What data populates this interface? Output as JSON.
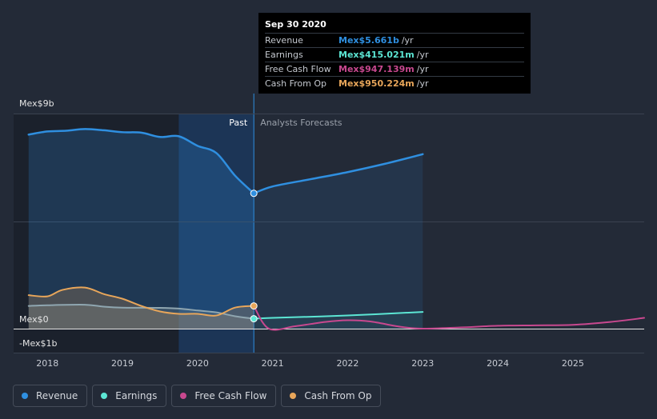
{
  "chart_data": {
    "type": "line",
    "title": "",
    "ylabel": "",
    "ylim": [
      -1,
      9
    ],
    "y_ticks": [
      {
        "value": 9,
        "label": "Mex$9b"
      },
      {
        "value": 0,
        "label": "Mex$0"
      },
      {
        "value": -1,
        "label": "-Mex$1b"
      }
    ],
    "x_range": [
      2017.55,
      2025.95
    ],
    "x_ticks": [
      {
        "value": 2018,
        "label": "2018"
      },
      {
        "value": 2019,
        "label": "2019"
      },
      {
        "value": 2020,
        "label": "2020"
      },
      {
        "value": 2021,
        "label": "2021"
      },
      {
        "value": 2022,
        "label": "2022"
      },
      {
        "value": 2023,
        "label": "2023"
      },
      {
        "value": 2024,
        "label": "2024"
      },
      {
        "value": 2025,
        "label": "2025"
      }
    ],
    "past_label": "Past",
    "forecast_label": "Analysts Forecasts",
    "past_end": 2020.75,
    "past_highlight_start": 2019.75,
    "series": [
      {
        "name": "Revenue",
        "color": "#2f8fe0",
        "points": [
          [
            2017.75,
            8.12
          ],
          [
            2018.0,
            8.25
          ],
          [
            2018.25,
            8.28
          ],
          [
            2018.5,
            8.35
          ],
          [
            2018.75,
            8.3
          ],
          [
            2019.0,
            8.22
          ],
          [
            2019.25,
            8.2
          ],
          [
            2019.5,
            8.02
          ],
          [
            2019.75,
            8.05
          ],
          [
            2020.0,
            7.65
          ],
          [
            2020.25,
            7.35
          ],
          [
            2020.5,
            6.4
          ],
          [
            2020.75,
            5.661
          ]
        ],
        "forecast": [
          [
            2020.75,
            5.661
          ],
          [
            2021.0,
            5.95
          ],
          [
            2021.5,
            6.25
          ],
          [
            2022.0,
            6.55
          ],
          [
            2022.5,
            6.9
          ],
          [
            2023.0,
            7.3
          ]
        ]
      },
      {
        "name": "Earnings",
        "color": "#5ce6d4",
        "points": [
          [
            2017.75,
            0.95
          ],
          [
            2018.0,
            0.98
          ],
          [
            2018.5,
            1.0
          ],
          [
            2018.75,
            0.92
          ],
          [
            2019.0,
            0.88
          ],
          [
            2019.5,
            0.87
          ],
          [
            2019.75,
            0.84
          ],
          [
            2020.0,
            0.76
          ],
          [
            2020.25,
            0.68
          ],
          [
            2020.5,
            0.52
          ],
          [
            2020.75,
            0.415
          ]
        ],
        "forecast": [
          [
            2020.75,
            0.415
          ],
          [
            2021.0,
            0.45
          ],
          [
            2022.0,
            0.55
          ],
          [
            2023.0,
            0.7
          ]
        ]
      },
      {
        "name": "Free Cash Flow",
        "color": "#c8488f",
        "points": [],
        "forecast": [
          [
            2020.75,
            0.947
          ],
          [
            2020.95,
            0.0
          ],
          [
            2021.3,
            0.1
          ],
          [
            2021.7,
            0.28
          ],
          [
            2022.0,
            0.35
          ],
          [
            2022.3,
            0.3
          ],
          [
            2022.7,
            0.08
          ],
          [
            2023.0,
            0.0
          ],
          [
            2023.5,
            0.05
          ],
          [
            2024.0,
            0.12
          ],
          [
            2024.5,
            0.14
          ],
          [
            2025.0,
            0.16
          ],
          [
            2025.5,
            0.28
          ],
          [
            2025.95,
            0.45
          ]
        ]
      },
      {
        "name": "Cash From Op",
        "color": "#e8a65a",
        "points": [
          [
            2017.75,
            1.4
          ],
          [
            2018.0,
            1.35
          ],
          [
            2018.2,
            1.62
          ],
          [
            2018.5,
            1.72
          ],
          [
            2018.75,
            1.45
          ],
          [
            2019.0,
            1.25
          ],
          [
            2019.25,
            0.95
          ],
          [
            2019.5,
            0.72
          ],
          [
            2019.75,
            0.62
          ],
          [
            2020.0,
            0.62
          ],
          [
            2020.25,
            0.55
          ],
          [
            2020.5,
            0.88
          ],
          [
            2020.75,
            0.95
          ]
        ],
        "forecast": []
      }
    ]
  },
  "tooltip": {
    "date": "Sep 30 2020",
    "rows": [
      {
        "label": "Revenue",
        "value": "Mex$5.661b",
        "unit": "/yr",
        "color": "#2f8fe0"
      },
      {
        "label": "Earnings",
        "value": "Mex$415.021m",
        "unit": "/yr",
        "color": "#5ce6d4"
      },
      {
        "label": "Free Cash Flow",
        "value": "Mex$947.139m",
        "unit": "/yr",
        "color": "#c8488f"
      },
      {
        "label": "Cash From Op",
        "value": "Mex$950.224m",
        "unit": "/yr",
        "color": "#e8a65a"
      }
    ]
  },
  "legend": [
    {
      "label": "Revenue",
      "color": "#2f8fe0"
    },
    {
      "label": "Earnings",
      "color": "#5ce6d4"
    },
    {
      "label": "Free Cash Flow",
      "color": "#c8488f"
    },
    {
      "label": "Cash From Op",
      "color": "#e8a65a"
    }
  ]
}
